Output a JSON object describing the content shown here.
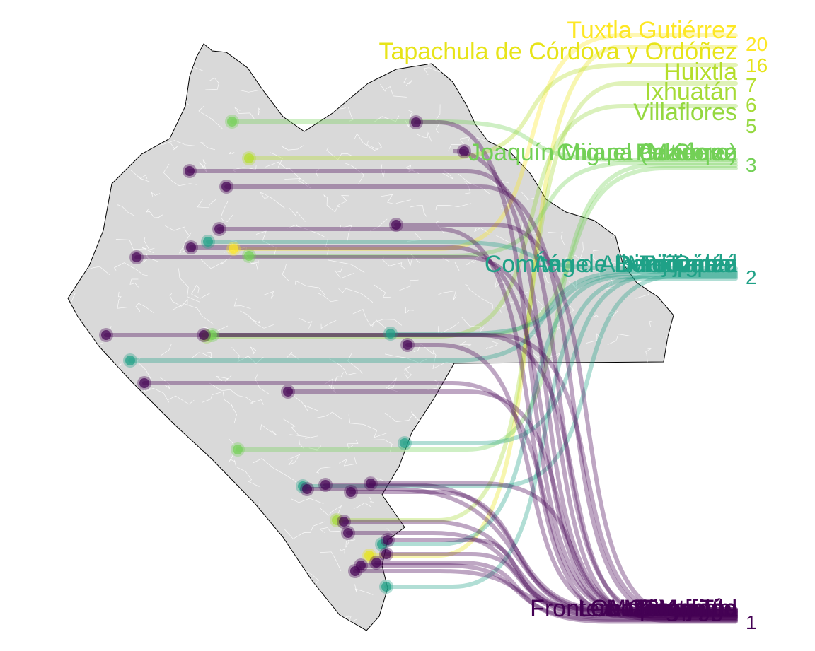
{
  "colors": {
    "background": "#ffffff",
    "land": "#d9d9d9",
    "outline": "#000000",
    "municipal_border": "#ffffff",
    "scale": {
      "20": "#fde725",
      "16": "#e7e419",
      "7": "#b5de2b",
      "6": "#a5db36",
      "5": "#95d840",
      "3": "#73d056",
      "2": "#1fa187",
      "1": "#440154"
    }
  },
  "chart_data": {
    "type": "map-flow",
    "title": "",
    "subtitle": "",
    "color_scale": "viridis",
    "value_range": [
      1,
      20
    ],
    "labeled_groups": [
      {
        "value": 20,
        "labels": [
          "Tuxtla Gutiérrez"
        ]
      },
      {
        "value": 16,
        "labels": [
          "Tapachula de Córdova y Ordóñez"
        ]
      },
      {
        "value": 7,
        "labels": [
          "Huixtla"
        ]
      },
      {
        "value": 6,
        "labels": [
          "Ixhuatán"
        ]
      },
      {
        "value": 5,
        "labels": [
          "Villaflores"
        ]
      },
      {
        "value": 3,
        "labels": [
          "Joaquín Miguel Gutiérrez",
          "Chiapa de Corzo",
          "(Madero)",
          "Palenque"
        ]
      },
      {
        "value": 2,
        "labels": [
          "Comitán de Domínguez",
          "Ángel Albino Corzo",
          "Tonalá",
          "Berriozábal",
          "Pijijiapan",
          "Motozintla",
          "Tecpatán"
        ]
      },
      {
        "value": 1,
        "labels": [
          "Manuel",
          "Ocozocoautla",
          "Cintalapa",
          "Las Margaritas",
          "Ocosingo",
          "Mapastepec",
          "Frontera Comalapa",
          "Acacoyagua",
          "Suchiate",
          "Teopisca",
          "Yajalón",
          "Simojovel",
          "Tila",
          "Escuintla"
        ]
      }
    ]
  }
}
